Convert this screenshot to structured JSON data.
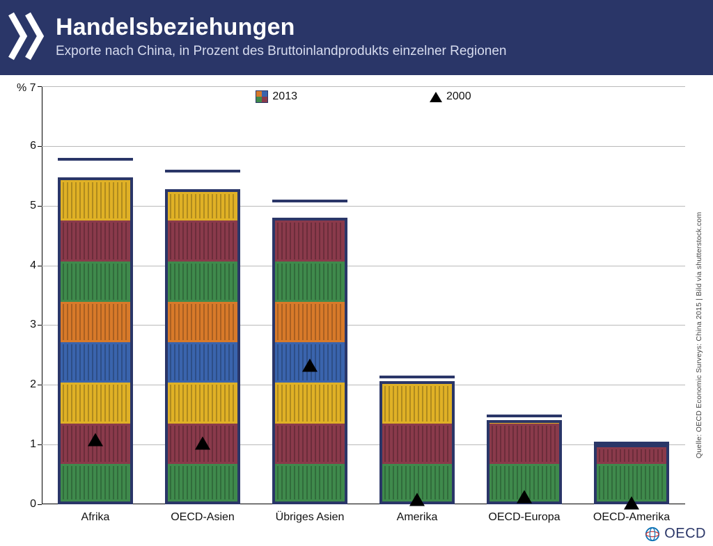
{
  "header": {
    "title": "Handelsbeziehungen",
    "subtitle": "Exporte nach China, in Prozent des Bruttoinlandprodukts einzelner Regionen",
    "bg_color": "#2a3668",
    "title_color": "#ffffff",
    "subtitle_color": "#d7dcef",
    "title_fontsize": 34,
    "subtitle_fontsize": 19
  },
  "chart": {
    "type": "bar",
    "y_unit_label": "% 7",
    "ylim_min": 0,
    "ylim_max": 7,
    "ytick_step": 1,
    "yticks": [
      0,
      1,
      2,
      3,
      4,
      5,
      6,
      7
    ],
    "grid_color": "#b9b9b9",
    "axis_color": "#000000",
    "background_color": "#ffffff",
    "label_fontsize": 16,
    "bar_border_color": "#2a3668",
    "bar_border_width": 4,
    "bar_width_ratio": 0.7,
    "container_stripe_color": "rgba(0,0,0,0.22)",
    "segment_colors_cycle": [
      "#3f8a4c",
      "#8a3a4b",
      "#e0b126",
      "#3a64ad",
      "#d87a2a",
      "#3f8a4c",
      "#8a3a4b",
      "#e0b126"
    ],
    "categories": [
      {
        "label": "Afrika",
        "value_2013": 5.8,
        "value_2000": 1.3
      },
      {
        "label": "OECD-Asien",
        "value_2013": 5.6,
        "value_2000": 1.25
      },
      {
        "label": "Übriges Asien",
        "value_2013": 5.1,
        "value_2000": 2.55
      },
      {
        "label": "Amerika",
        "value_2013": 2.15,
        "value_2000": 0.3
      },
      {
        "label": "OECD-Europa",
        "value_2013": 1.5,
        "value_2000": 0.35
      },
      {
        "label": "OECD-Amerika",
        "value_2013": 1.05,
        "value_2000": 0.25
      }
    ],
    "legend": {
      "series_2013_label": "2013",
      "series_2000_label": "2000",
      "swatch_colors": [
        "#d87a2a",
        "#3a64ad",
        "#3f8a4c",
        "#8a3a4b"
      ],
      "marker_2000_color": "#000000"
    }
  },
  "credit_text": "Quelle: OECD Economic Surveys: China 2015 | Bild via shutterstock.com",
  "footer": {
    "brand": "OECD",
    "brand_color": "#2a3668"
  }
}
